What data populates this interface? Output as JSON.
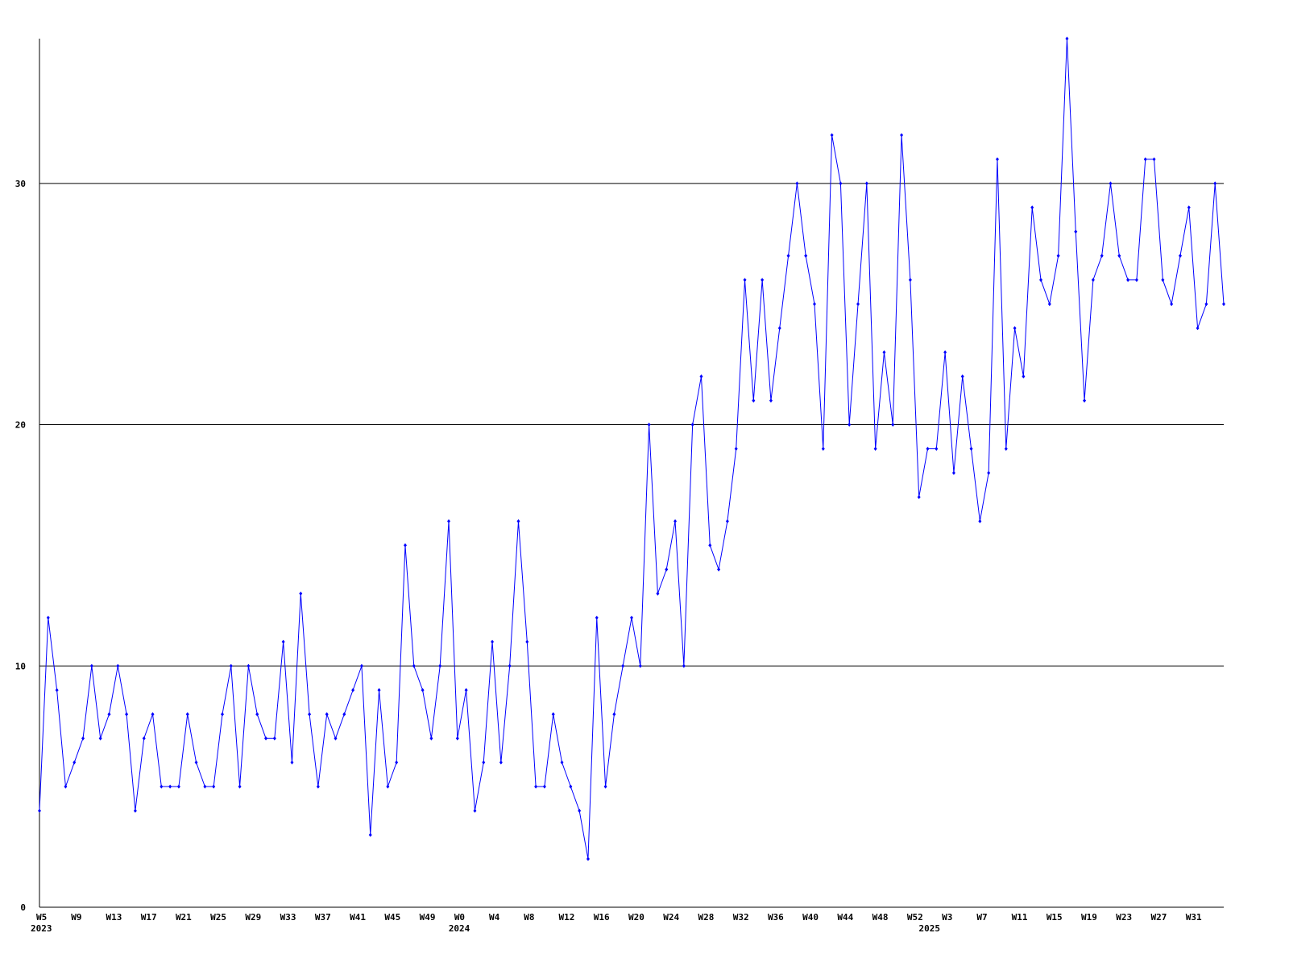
{
  "chart_data": {
    "type": "line",
    "categories": [
      "W5",
      null,
      null,
      null,
      "W9",
      null,
      null,
      null,
      "W13",
      null,
      null,
      null,
      "W17",
      null,
      null,
      null,
      "W21",
      null,
      null,
      null,
      "W25",
      null,
      null,
      null,
      "W29",
      null,
      null,
      null,
      "W33",
      null,
      null,
      null,
      "W37",
      null,
      null,
      null,
      "W41",
      null,
      null,
      null,
      "W45",
      null,
      null,
      null,
      "W49",
      null,
      null,
      null,
      "W0",
      null,
      null,
      null,
      "W4",
      null,
      null,
      null,
      "W8",
      null,
      null,
      null,
      "W12",
      null,
      null,
      null,
      "W16",
      null,
      null,
      null,
      "W20",
      null,
      null,
      null,
      "W24",
      null,
      null,
      null,
      "W28",
      null,
      null,
      null,
      "W32",
      null,
      null,
      null,
      "W36",
      null,
      null,
      null,
      "W40",
      null,
      null,
      null,
      "W44",
      null,
      null,
      null,
      "W48",
      null,
      null,
      null,
      "W52",
      null,
      null,
      null,
      "W3",
      null,
      null,
      null,
      "W7",
      null,
      null,
      null,
      "W11",
      null,
      null,
      null,
      "W15",
      null,
      null,
      null,
      "W19",
      null,
      null,
      null,
      "W23",
      null,
      null,
      null,
      "W27",
      null,
      null,
      null,
      "W31",
      null,
      null,
      null,
      null
    ],
    "years": [
      "2023",
      null,
      null,
      null,
      null,
      null,
      null,
      null,
      null,
      null,
      null,
      null,
      null,
      null,
      null,
      null,
      null,
      null,
      null,
      null,
      null,
      null,
      null,
      null,
      null,
      null,
      null,
      null,
      null,
      null,
      null,
      null,
      null,
      null,
      null,
      null,
      null,
      null,
      null,
      null,
      null,
      null,
      null,
      null,
      null,
      null,
      null,
      null,
      "2024",
      null,
      null,
      null,
      null,
      null,
      null,
      null,
      null,
      null,
      null,
      null,
      null,
      null,
      null,
      null,
      null,
      null,
      null,
      null,
      null,
      null,
      null,
      null,
      null,
      null,
      null,
      null,
      null,
      null,
      null,
      null,
      null,
      null,
      null,
      null,
      null,
      null,
      null,
      null,
      null,
      null,
      null,
      null,
      null,
      null,
      null,
      null,
      null,
      null,
      null,
      null,
      null,
      null,
      "2025",
      null,
      null,
      null,
      null,
      null,
      null,
      null,
      null,
      null,
      null,
      null,
      null,
      null,
      null,
      null,
      null,
      null,
      null,
      null,
      null,
      null,
      null,
      null,
      null,
      null,
      null,
      null,
      null,
      null,
      null,
      null,
      null,
      null,
      null,
      null
    ],
    "values": [
      4,
      12,
      9,
      5,
      6,
      7,
      10,
      7,
      8,
      10,
      8,
      4,
      7,
      8,
      5,
      5,
      5,
      8,
      6,
      5,
      5,
      8,
      10,
      5,
      10,
      8,
      7,
      7,
      11,
      6,
      13,
      8,
      5,
      8,
      7,
      8,
      9,
      10,
      3,
      9,
      5,
      6,
      15,
      10,
      9,
      7,
      10,
      16,
      7,
      9,
      4,
      6,
      11,
      6,
      10,
      16,
      11,
      5,
      5,
      8,
      6,
      5,
      4,
      2,
      12,
      5,
      8,
      10,
      12,
      10,
      20,
      13,
      14,
      16,
      10,
      20,
      22,
      15,
      14,
      16,
      19,
      26,
      21,
      26,
      21,
      24,
      27,
      30,
      27,
      25,
      19,
      32,
      30,
      20,
      25,
      30,
      19,
      23,
      20,
      32,
      26,
      17,
      19,
      19,
      23,
      18,
      22,
      19,
      16,
      18,
      31,
      19,
      24,
      22,
      29,
      26,
      25,
      27,
      36,
      28,
      21,
      26,
      27,
      30,
      27,
      26,
      26,
      31,
      31,
      26,
      25,
      27,
      29,
      24,
      25,
      30,
      25
    ],
    "color": "#0000ff",
    "ylim": [
      0,
      36
    ],
    "yticks": [
      0,
      10,
      20,
      30
    ],
    "grid": true
  }
}
